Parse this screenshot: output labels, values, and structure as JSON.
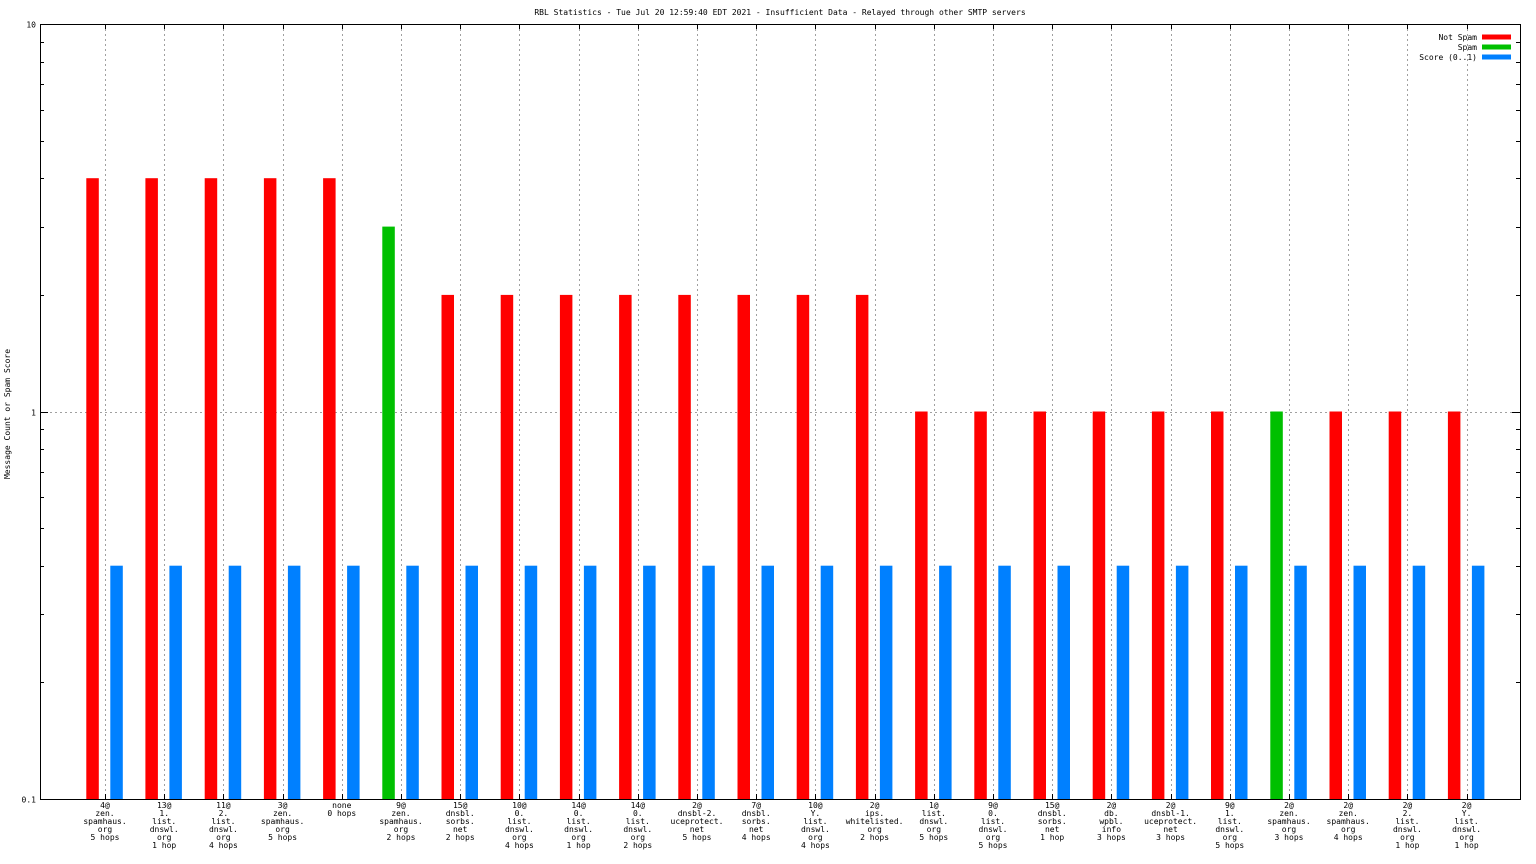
{
  "chart_data": {
    "type": "bar",
    "title": "RBL Statistics - Tue Jul 20 12:59:40 EDT 2021 - Insufficient Data - Relayed through other SMTP servers",
    "xlabel": "",
    "ylabel": "Message Count or Spam Score",
    "yscale": "log",
    "ylim": [
      0.1,
      10
    ],
    "yticks": [
      {
        "value": 0.1,
        "label": "0.1"
      },
      {
        "value": 1,
        "label": "1"
      },
      {
        "value": 10,
        "label": "10"
      }
    ],
    "grid": true,
    "legend_position": "top-right",
    "categories": [
      [
        "4@",
        "zen.",
        "spamhaus.",
        "org",
        "5 hops"
      ],
      [
        "13@",
        "1.",
        "list.",
        "dnswl.",
        "org",
        "1 hop"
      ],
      [
        "11@",
        "2.",
        "list.",
        "dnswl.",
        "org",
        "4 hops"
      ],
      [
        "3@",
        "zen.",
        "spamhaus.",
        "org",
        "5 hops"
      ],
      [
        "none",
        "0 hops"
      ],
      [
        "9@",
        "zen.",
        "spamhaus.",
        "org",
        "2 hops"
      ],
      [
        "15@",
        "dnsbl.",
        "sorbs.",
        "net",
        "2 hops"
      ],
      [
        "10@",
        "0.",
        "list.",
        "dnswl.",
        "org",
        "4 hops"
      ],
      [
        "14@",
        "0.",
        "list.",
        "dnswl.",
        "org",
        "1 hop"
      ],
      [
        "14@",
        "0.",
        "list.",
        "dnswl.",
        "org",
        "2 hops"
      ],
      [
        "2@",
        "dnsbl-2.",
        "uceprotect.",
        "net",
        "5 hops"
      ],
      [
        "7@",
        "dnsbl.",
        "sorbs.",
        "net",
        "4 hops"
      ],
      [
        "10@",
        "Y.",
        "list.",
        "dnswl.",
        "org",
        "4 hops"
      ],
      [
        "2@",
        "ips.",
        "whitelisted.",
        "org",
        "2 hops"
      ],
      [
        "1@",
        "list.",
        "dnswl.",
        "org",
        "5 hops"
      ],
      [
        "9@",
        "0.",
        "list.",
        "dnswl.",
        "org",
        "5 hops"
      ],
      [
        "15@",
        "dnsbl.",
        "sorbs.",
        "net",
        "1 hop"
      ],
      [
        "2@",
        "db.",
        "wpbl.",
        "info",
        "3 hops"
      ],
      [
        "2@",
        "dnsbl-1.",
        "uceprotect.",
        "net",
        "3 hops"
      ],
      [
        "9@",
        "1.",
        "list.",
        "dnswl.",
        "org",
        "5 hops"
      ],
      [
        "2@",
        "zen.",
        "spamhaus.",
        "org",
        "3 hops"
      ],
      [
        "2@",
        "zen.",
        "spamhaus.",
        "org",
        "4 hops"
      ],
      [
        "2@",
        "2.",
        "list.",
        "dnswl.",
        "org",
        "1 hop"
      ],
      [
        "2@",
        "Y.",
        "list.",
        "dnswl.",
        "org",
        "1 hop"
      ]
    ],
    "series": [
      {
        "name": "Not Spam",
        "color": "#ff0000",
        "values": [
          4,
          4,
          4,
          4,
          4,
          0,
          2,
          2,
          2,
          2,
          2,
          2,
          2,
          2,
          1,
          1,
          1,
          1,
          1,
          1,
          0,
          1,
          1,
          1
        ]
      },
      {
        "name": "Spam",
        "color": "#00c000",
        "values": [
          0,
          0,
          0,
          0,
          0,
          3,
          0,
          0,
          0,
          0,
          0,
          0,
          0,
          0,
          0,
          0,
          0,
          0,
          0,
          0,
          1,
          0,
          0,
          0
        ]
      },
      {
        "name": "Score (0..1)",
        "color": "#0080ff",
        "values": [
          0.4,
          0.4,
          0.4,
          0.4,
          0.4,
          0.4,
          0.4,
          0.4,
          0.4,
          0.4,
          0.4,
          0.4,
          0.4,
          0.4,
          0.4,
          0.4,
          0.4,
          0.4,
          0.4,
          0.4,
          0.4,
          0.4,
          0.4,
          0.4
        ]
      }
    ]
  }
}
